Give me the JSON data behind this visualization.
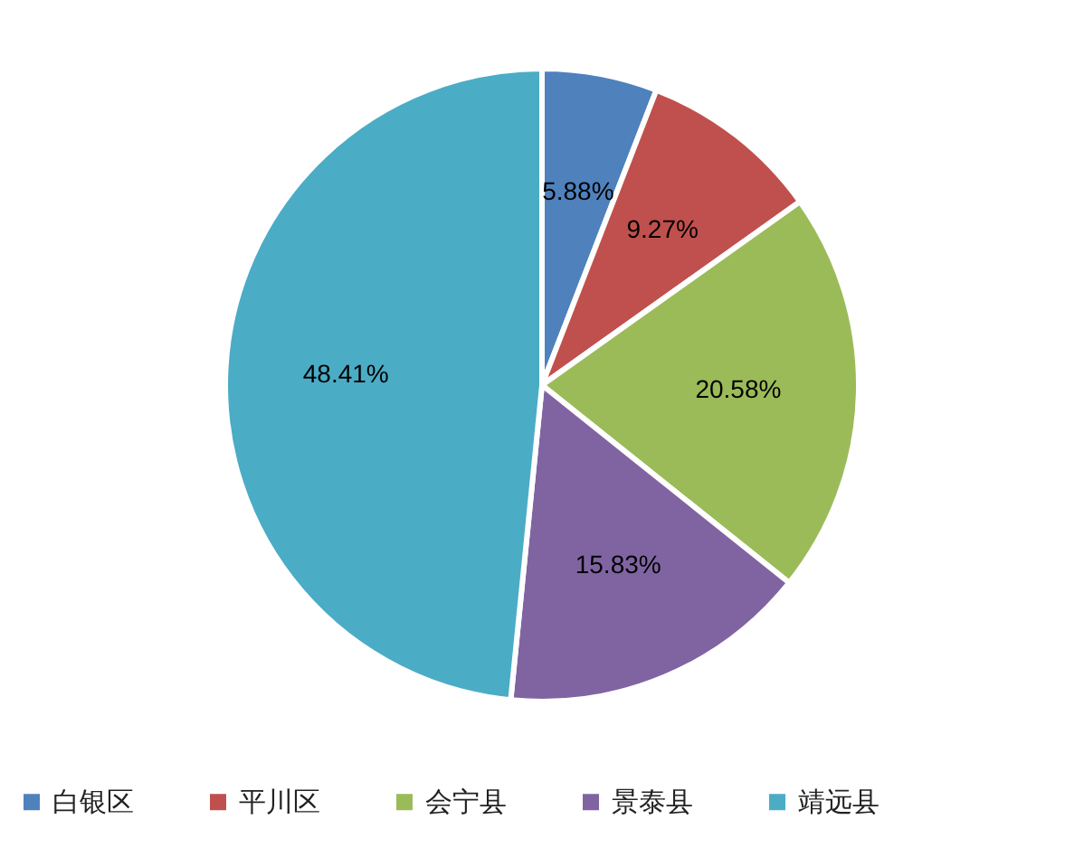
{
  "chart_data": {
    "type": "pie",
    "categories": [
      "白银区",
      "平川区",
      "会宁县",
      "景泰县",
      "靖远县"
    ],
    "values": [
      5.88,
      9.27,
      20.58,
      15.83,
      48.41
    ],
    "value_labels": [
      "5.88%",
      "9.27%",
      "20.58%",
      "15.83%",
      "48.41%"
    ],
    "colors": [
      "#4f81bd",
      "#c0504d",
      "#9bbb59",
      "#8064a2",
      "#4bacc6"
    ],
    "legend": "bottom"
  }
}
